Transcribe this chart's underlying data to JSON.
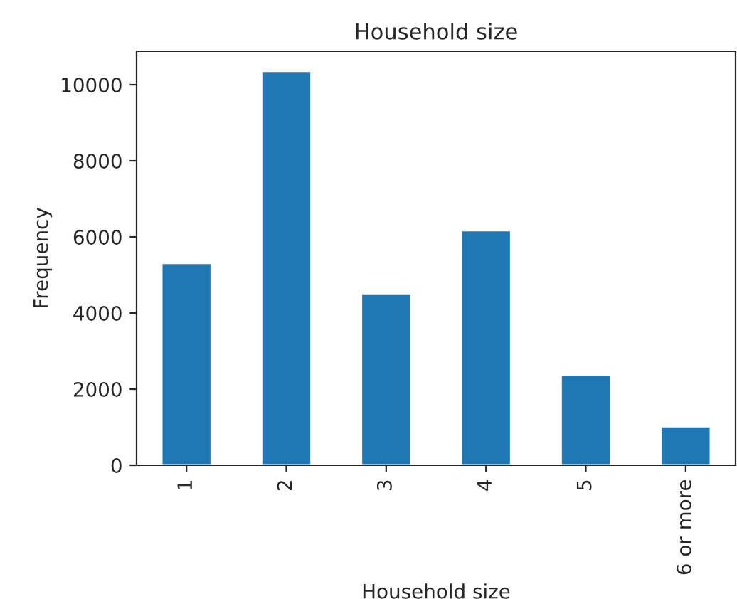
{
  "chart_data": {
    "type": "bar",
    "title": "Household size",
    "xlabel": "Household size",
    "ylabel": "Frequency",
    "categories": [
      "1",
      "2",
      "3",
      "4",
      "5",
      "6 or more"
    ],
    "values": [
      5310,
      10360,
      4515,
      6170,
      2375,
      1020
    ],
    "color": "#1f77b4",
    "ylim": [
      0,
      10880
    ],
    "yticks": [
      0,
      2000,
      4000,
      6000,
      8000,
      10000
    ],
    "grid": false,
    "legend": false
  }
}
